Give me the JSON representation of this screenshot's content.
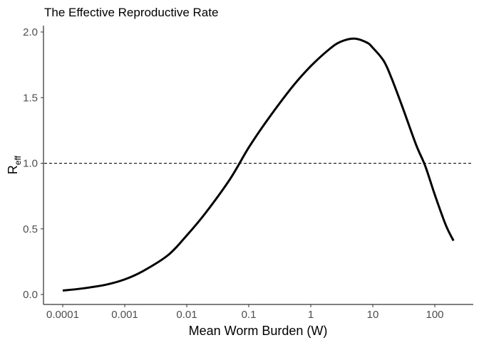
{
  "chart_data": {
    "type": "line",
    "title": "The Effective Reproductive Rate",
    "xlabel": "Mean Worm Burden (W)",
    "ylabel": {
      "main": "R",
      "sub": "eff"
    },
    "x_scale": "log10",
    "xlim": [
      0.0001,
      200
    ],
    "ylim": [
      0,
      2.0
    ],
    "x_ticks": [
      {
        "value": 0.0001,
        "label": "0.0001"
      },
      {
        "value": 0.001,
        "label": "0.001"
      },
      {
        "value": 0.01,
        "label": "0.01"
      },
      {
        "value": 0.1,
        "label": "0.1"
      },
      {
        "value": 1,
        "label": "1"
      },
      {
        "value": 10,
        "label": "10"
      },
      {
        "value": 100,
        "label": "100"
      }
    ],
    "y_ticks": [
      {
        "value": 0,
        "label": "0.0"
      },
      {
        "value": 0.5,
        "label": "0.5"
      },
      {
        "value": 1.0,
        "label": "1.0"
      },
      {
        "value": 1.5,
        "label": "1.5"
      },
      {
        "value": 2.0,
        "label": "2.0"
      }
    ],
    "grid": false,
    "reference_line": {
      "y": 1.0,
      "style": "dashed",
      "color": "#000000"
    },
    "series": [
      {
        "color": "#000000",
        "points": [
          {
            "x": 0.0001,
            "y": 0.03
          },
          {
            "x": 0.0002,
            "y": 0.045
          },
          {
            "x": 0.0005,
            "y": 0.075
          },
          {
            "x": 0.001,
            "y": 0.115
          },
          {
            "x": 0.002,
            "y": 0.18
          },
          {
            "x": 0.005,
            "y": 0.3
          },
          {
            "x": 0.01,
            "y": 0.45
          },
          {
            "x": 0.02,
            "y": 0.62
          },
          {
            "x": 0.05,
            "y": 0.88
          },
          {
            "x": 0.1,
            "y": 1.12
          },
          {
            "x": 0.2,
            "y": 1.33
          },
          {
            "x": 0.5,
            "y": 1.58
          },
          {
            "x": 1,
            "y": 1.74
          },
          {
            "x": 2,
            "y": 1.87
          },
          {
            "x": 3,
            "y": 1.925
          },
          {
            "x": 5,
            "y": 1.95
          },
          {
            "x": 8,
            "y": 1.92
          },
          {
            "x": 10,
            "y": 1.88
          },
          {
            "x": 15,
            "y": 1.78
          },
          {
            "x": 20,
            "y": 1.65
          },
          {
            "x": 30,
            "y": 1.43
          },
          {
            "x": 50,
            "y": 1.14
          },
          {
            "x": 70,
            "y": 0.98
          },
          {
            "x": 100,
            "y": 0.76
          },
          {
            "x": 150,
            "y": 0.53
          },
          {
            "x": 200,
            "y": 0.41
          }
        ]
      }
    ]
  }
}
